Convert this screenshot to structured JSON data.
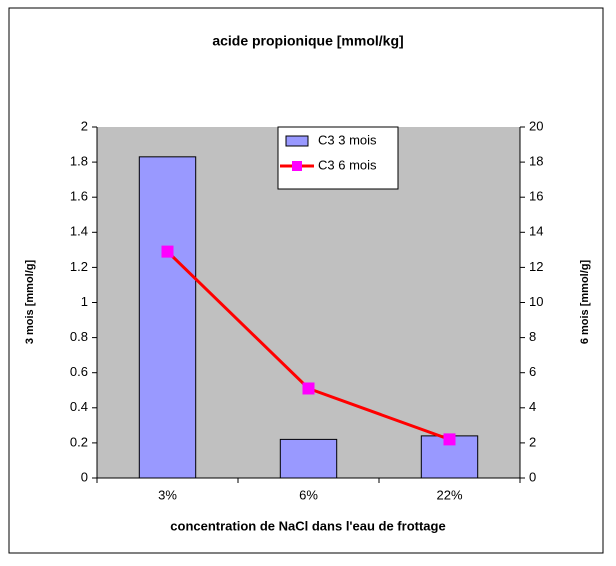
{
  "chart_data": {
    "type": "bar",
    "title": "acide propionique [mmol/kg]",
    "x_label": "concentration de NaCl dans l'eau de frottage",
    "y_label": "3 mois [mmol/g]",
    "y2_label": "6 mois [mmol/g]",
    "categories": [
      "3%",
      "6%",
      "22%"
    ],
    "series": [
      {
        "name": "C3 3 mois",
        "type": "bar",
        "color": "#9999ff",
        "values": [
          1.83,
          0.22,
          0.24
        ]
      },
      {
        "name": "C3 6 mois",
        "type": "line",
        "axis": "y2",
        "color": "#ff0000",
        "marker_color": "#ff00ff",
        "values": [
          12.9,
          5.1,
          2.2
        ]
      }
    ],
    "ylim": [
      0,
      2
    ],
    "yticks": [
      0,
      0.2,
      0.4,
      0.6,
      0.8,
      1,
      1.2,
      1.4,
      1.6,
      1.8,
      2
    ],
    "y2lim": [
      0,
      20
    ],
    "y2ticks": [
      0,
      2,
      4,
      6,
      8,
      10,
      12,
      14,
      16,
      18,
      20
    ],
    "grid": false,
    "legend": "top",
    "plot_background": "#c0c0c0"
  }
}
